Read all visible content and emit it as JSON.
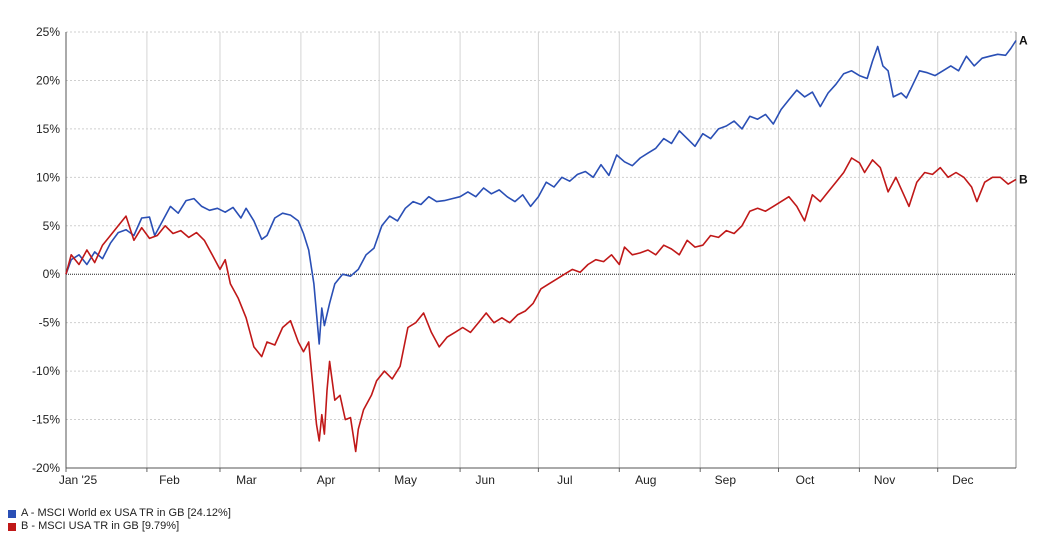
{
  "chart_data": {
    "type": "line",
    "y_unit": "%",
    "ylim": [
      -20,
      25
    ],
    "yticks": [
      25,
      20,
      15,
      10,
      5,
      0,
      -5,
      -10,
      -15,
      -20
    ],
    "ytick_labels": [
      "25%",
      "20%",
      "15%",
      "10%",
      "5%",
      "0%",
      "-5%",
      "-10%",
      "-15%",
      "-20%"
    ],
    "xlim": [
      "2025-01-01",
      "2025-12-31"
    ],
    "xtick_labels": [
      "Jan '25",
      "Feb",
      "Mar",
      "Apr",
      "May",
      "Jun",
      "Jul",
      "Aug",
      "Sep",
      "Oct",
      "Nov",
      "Dec"
    ],
    "grid": true,
    "series": [
      {
        "id": "A",
        "name": "A - MSCI World ex USA TR in GB [24.12%]",
        "color": "#2a4fb5",
        "points": [
          [
            "2025-01-01",
            0
          ],
          [
            "2025-01-03",
            1.5
          ],
          [
            "2025-01-06",
            2.0
          ],
          [
            "2025-01-09",
            1.0
          ],
          [
            "2025-01-12",
            2.3
          ],
          [
            "2025-01-15",
            1.6
          ],
          [
            "2025-01-18",
            3.2
          ],
          [
            "2025-01-21",
            4.3
          ],
          [
            "2025-01-24",
            4.6
          ],
          [
            "2025-01-27",
            4.0
          ],
          [
            "2025-01-30",
            5.8
          ],
          [
            "2025-02-02",
            5.9
          ],
          [
            "2025-02-04",
            4.0
          ],
          [
            "2025-02-07",
            5.5
          ],
          [
            "2025-02-10",
            7.0
          ],
          [
            "2025-02-13",
            6.3
          ],
          [
            "2025-02-16",
            7.6
          ],
          [
            "2025-02-19",
            7.8
          ],
          [
            "2025-02-22",
            7.0
          ],
          [
            "2025-02-25",
            6.6
          ],
          [
            "2025-02-28",
            6.8
          ],
          [
            "2025-03-03",
            6.4
          ],
          [
            "2025-03-06",
            6.9
          ],
          [
            "2025-03-09",
            5.8
          ],
          [
            "2025-03-11",
            6.8
          ],
          [
            "2025-03-14",
            5.5
          ],
          [
            "2025-03-17",
            3.6
          ],
          [
            "2025-03-19",
            4.0
          ],
          [
            "2025-03-22",
            5.8
          ],
          [
            "2025-03-25",
            6.3
          ],
          [
            "2025-03-28",
            6.1
          ],
          [
            "2025-03-31",
            5.5
          ],
          [
            "2025-04-02",
            4.2
          ],
          [
            "2025-04-04",
            2.5
          ],
          [
            "2025-04-06",
            -1.0
          ],
          [
            "2025-04-08",
            -7.2
          ],
          [
            "2025-04-09",
            -3.5
          ],
          [
            "2025-04-10",
            -5.3
          ],
          [
            "2025-04-12",
            -3.0
          ],
          [
            "2025-04-14",
            -1.0
          ],
          [
            "2025-04-17",
            0.0
          ],
          [
            "2025-04-20",
            -0.2
          ],
          [
            "2025-04-23",
            0.5
          ],
          [
            "2025-04-26",
            2.0
          ],
          [
            "2025-04-29",
            2.7
          ],
          [
            "2025-05-02",
            5.0
          ],
          [
            "2025-05-05",
            6.0
          ],
          [
            "2025-05-08",
            5.5
          ],
          [
            "2025-05-11",
            6.8
          ],
          [
            "2025-05-14",
            7.5
          ],
          [
            "2025-05-17",
            7.2
          ],
          [
            "2025-05-20",
            8.0
          ],
          [
            "2025-05-23",
            7.5
          ],
          [
            "2025-05-26",
            7.6
          ],
          [
            "2025-05-29",
            7.8
          ],
          [
            "2025-06-01",
            8.0
          ],
          [
            "2025-06-04",
            8.5
          ],
          [
            "2025-06-07",
            8.0
          ],
          [
            "2025-06-10",
            8.9
          ],
          [
            "2025-06-13",
            8.3
          ],
          [
            "2025-06-16",
            8.7
          ],
          [
            "2025-06-19",
            8.0
          ],
          [
            "2025-06-22",
            7.5
          ],
          [
            "2025-06-25",
            8.2
          ],
          [
            "2025-06-28",
            7.0
          ],
          [
            "2025-07-01",
            8.0
          ],
          [
            "2025-07-04",
            9.5
          ],
          [
            "2025-07-07",
            9.0
          ],
          [
            "2025-07-10",
            10.0
          ],
          [
            "2025-07-13",
            9.6
          ],
          [
            "2025-07-16",
            10.3
          ],
          [
            "2025-07-19",
            10.6
          ],
          [
            "2025-07-22",
            10.0
          ],
          [
            "2025-07-25",
            11.3
          ],
          [
            "2025-07-28",
            10.2
          ],
          [
            "2025-07-31",
            12.3
          ],
          [
            "2025-08-03",
            11.6
          ],
          [
            "2025-08-06",
            11.2
          ],
          [
            "2025-08-09",
            12.0
          ],
          [
            "2025-08-12",
            12.5
          ],
          [
            "2025-08-15",
            13.0
          ],
          [
            "2025-08-18",
            14.0
          ],
          [
            "2025-08-21",
            13.5
          ],
          [
            "2025-08-24",
            14.8
          ],
          [
            "2025-08-27",
            14.0
          ],
          [
            "2025-08-30",
            13.2
          ],
          [
            "2025-09-02",
            14.5
          ],
          [
            "2025-09-05",
            14.0
          ],
          [
            "2025-09-08",
            15.0
          ],
          [
            "2025-09-11",
            15.3
          ],
          [
            "2025-09-14",
            15.8
          ],
          [
            "2025-09-17",
            15.0
          ],
          [
            "2025-09-20",
            16.3
          ],
          [
            "2025-09-23",
            16.0
          ],
          [
            "2025-09-26",
            16.5
          ],
          [
            "2025-09-29",
            15.5
          ],
          [
            "2025-10-02",
            17.0
          ],
          [
            "2025-10-05",
            18.0
          ],
          [
            "2025-10-08",
            19.0
          ],
          [
            "2025-10-11",
            18.3
          ],
          [
            "2025-10-14",
            18.8
          ],
          [
            "2025-10-17",
            17.3
          ],
          [
            "2025-10-20",
            18.7
          ],
          [
            "2025-10-23",
            19.6
          ],
          [
            "2025-10-26",
            20.7
          ],
          [
            "2025-10-29",
            21.0
          ],
          [
            "2025-11-01",
            20.5
          ],
          [
            "2025-11-04",
            20.2
          ],
          [
            "2025-11-06",
            22.0
          ],
          [
            "2025-11-08",
            23.5
          ],
          [
            "2025-11-10",
            21.5
          ],
          [
            "2025-11-12",
            21.0
          ],
          [
            "2025-11-14",
            18.3
          ],
          [
            "2025-11-17",
            18.7
          ],
          [
            "2025-11-19",
            18.2
          ],
          [
            "2025-11-21",
            19.3
          ],
          [
            "2025-11-24",
            21.0
          ],
          [
            "2025-11-27",
            20.8
          ],
          [
            "2025-11-30",
            20.5
          ],
          [
            "2025-12-03",
            21.0
          ],
          [
            "2025-12-06",
            21.5
          ],
          [
            "2025-12-09",
            21.0
          ],
          [
            "2025-12-12",
            22.5
          ],
          [
            "2025-12-15",
            21.5
          ],
          [
            "2025-12-18",
            22.3
          ],
          [
            "2025-12-21",
            22.5
          ],
          [
            "2025-12-24",
            22.7
          ],
          [
            "2025-12-27",
            22.6
          ],
          [
            "2025-12-29",
            23.3
          ],
          [
            "2025-12-31",
            24.12
          ]
        ]
      },
      {
        "id": "B",
        "name": "B - MSCI USA TR in GB [9.79%]",
        "color": "#c01818",
        "points": [
          [
            "2025-01-01",
            0
          ],
          [
            "2025-01-03",
            2.0
          ],
          [
            "2025-01-06",
            1.0
          ],
          [
            "2025-01-09",
            2.5
          ],
          [
            "2025-01-12",
            1.2
          ],
          [
            "2025-01-15",
            3.0
          ],
          [
            "2025-01-18",
            4.0
          ],
          [
            "2025-01-21",
            5.0
          ],
          [
            "2025-01-24",
            6.0
          ],
          [
            "2025-01-27",
            3.5
          ],
          [
            "2025-01-30",
            4.8
          ],
          [
            "2025-02-02",
            3.7
          ],
          [
            "2025-02-05",
            4.0
          ],
          [
            "2025-02-08",
            5.0
          ],
          [
            "2025-02-11",
            4.2
          ],
          [
            "2025-02-14",
            4.5
          ],
          [
            "2025-02-17",
            3.8
          ],
          [
            "2025-02-20",
            4.3
          ],
          [
            "2025-02-23",
            3.5
          ],
          [
            "2025-02-26",
            2.0
          ],
          [
            "2025-03-01",
            0.5
          ],
          [
            "2025-03-03",
            1.5
          ],
          [
            "2025-03-05",
            -1.0
          ],
          [
            "2025-03-08",
            -2.5
          ],
          [
            "2025-03-11",
            -4.5
          ],
          [
            "2025-03-14",
            -7.5
          ],
          [
            "2025-03-17",
            -8.5
          ],
          [
            "2025-03-19",
            -7.0
          ],
          [
            "2025-03-22",
            -7.3
          ],
          [
            "2025-03-25",
            -5.5
          ],
          [
            "2025-03-28",
            -4.8
          ],
          [
            "2025-03-31",
            -7.0
          ],
          [
            "2025-04-02",
            -8.0
          ],
          [
            "2025-04-04",
            -7.0
          ],
          [
            "2025-04-07",
            -15.5
          ],
          [
            "2025-04-08",
            -17.2
          ],
          [
            "2025-04-09",
            -14.5
          ],
          [
            "2025-04-10",
            -16.5
          ],
          [
            "2025-04-11",
            -12.0
          ],
          [
            "2025-04-12",
            -9.0
          ],
          [
            "2025-04-14",
            -13.0
          ],
          [
            "2025-04-16",
            -12.5
          ],
          [
            "2025-04-18",
            -15.0
          ],
          [
            "2025-04-20",
            -14.8
          ],
          [
            "2025-04-22",
            -18.3
          ],
          [
            "2025-04-23",
            -16.0
          ],
          [
            "2025-04-25",
            -14.0
          ],
          [
            "2025-04-28",
            -12.5
          ],
          [
            "2025-04-30",
            -11.0
          ],
          [
            "2025-05-03",
            -10.0
          ],
          [
            "2025-05-06",
            -10.8
          ],
          [
            "2025-05-09",
            -9.5
          ],
          [
            "2025-05-12",
            -5.5
          ],
          [
            "2025-05-15",
            -5.0
          ],
          [
            "2025-05-18",
            -4.0
          ],
          [
            "2025-05-21",
            -6.0
          ],
          [
            "2025-05-24",
            -7.5
          ],
          [
            "2025-05-27",
            -6.5
          ],
          [
            "2025-05-30",
            -6.0
          ],
          [
            "2025-06-02",
            -5.5
          ],
          [
            "2025-06-05",
            -6.0
          ],
          [
            "2025-06-08",
            -5.0
          ],
          [
            "2025-06-11",
            -4.0
          ],
          [
            "2025-06-14",
            -5.0
          ],
          [
            "2025-06-17",
            -4.5
          ],
          [
            "2025-06-20",
            -5.0
          ],
          [
            "2025-06-23",
            -4.2
          ],
          [
            "2025-06-26",
            -3.8
          ],
          [
            "2025-06-29",
            -3.0
          ],
          [
            "2025-07-02",
            -1.5
          ],
          [
            "2025-07-05",
            -1.0
          ],
          [
            "2025-07-08",
            -0.5
          ],
          [
            "2025-07-11",
            0.0
          ],
          [
            "2025-07-14",
            0.5
          ],
          [
            "2025-07-17",
            0.2
          ],
          [
            "2025-07-20",
            1.0
          ],
          [
            "2025-07-23",
            1.5
          ],
          [
            "2025-07-26",
            1.3
          ],
          [
            "2025-07-29",
            2.0
          ],
          [
            "2025-08-01",
            1.0
          ],
          [
            "2025-08-03",
            2.8
          ],
          [
            "2025-08-06",
            2.0
          ],
          [
            "2025-08-09",
            2.2
          ],
          [
            "2025-08-12",
            2.5
          ],
          [
            "2025-08-15",
            2.0
          ],
          [
            "2025-08-18",
            3.0
          ],
          [
            "2025-08-21",
            2.6
          ],
          [
            "2025-08-24",
            2.0
          ],
          [
            "2025-08-27",
            3.5
          ],
          [
            "2025-08-30",
            2.8
          ],
          [
            "2025-09-02",
            3.0
          ],
          [
            "2025-09-05",
            4.0
          ],
          [
            "2025-09-08",
            3.8
          ],
          [
            "2025-09-11",
            4.5
          ],
          [
            "2025-09-14",
            4.2
          ],
          [
            "2025-09-17",
            5.0
          ],
          [
            "2025-09-20",
            6.5
          ],
          [
            "2025-09-23",
            6.8
          ],
          [
            "2025-09-26",
            6.5
          ],
          [
            "2025-09-29",
            7.0
          ],
          [
            "2025-10-02",
            7.5
          ],
          [
            "2025-10-05",
            8.0
          ],
          [
            "2025-10-08",
            7.0
          ],
          [
            "2025-10-11",
            5.5
          ],
          [
            "2025-10-14",
            8.2
          ],
          [
            "2025-10-17",
            7.5
          ],
          [
            "2025-10-20",
            8.5
          ],
          [
            "2025-10-23",
            9.5
          ],
          [
            "2025-10-26",
            10.5
          ],
          [
            "2025-10-29",
            12.0
          ],
          [
            "2025-11-01",
            11.5
          ],
          [
            "2025-11-03",
            10.5
          ],
          [
            "2025-11-06",
            11.8
          ],
          [
            "2025-11-09",
            11.0
          ],
          [
            "2025-11-12",
            8.5
          ],
          [
            "2025-11-15",
            10.0
          ],
          [
            "2025-11-18",
            8.2
          ],
          [
            "2025-11-20",
            7.0
          ],
          [
            "2025-11-23",
            9.5
          ],
          [
            "2025-11-26",
            10.5
          ],
          [
            "2025-11-29",
            10.3
          ],
          [
            "2025-12-02",
            11.0
          ],
          [
            "2025-12-05",
            10.0
          ],
          [
            "2025-12-08",
            10.5
          ],
          [
            "2025-12-11",
            10.0
          ],
          [
            "2025-12-14",
            9.0
          ],
          [
            "2025-12-16",
            7.5
          ],
          [
            "2025-12-19",
            9.5
          ],
          [
            "2025-12-22",
            10.0
          ],
          [
            "2025-12-25",
            10.0
          ],
          [
            "2025-12-28",
            9.3
          ],
          [
            "2025-12-31",
            9.79
          ]
        ]
      }
    ]
  }
}
